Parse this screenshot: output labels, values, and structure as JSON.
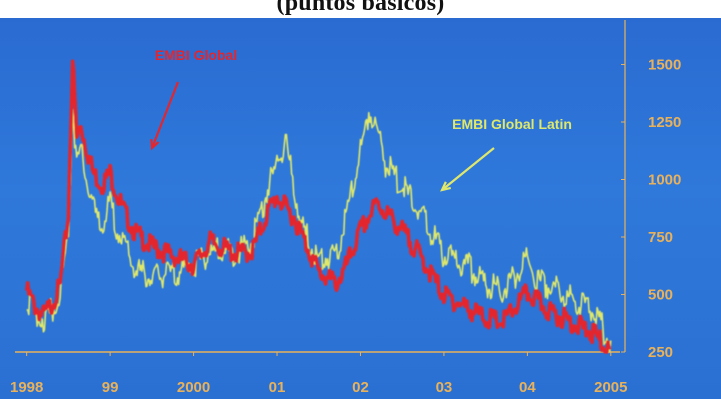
{
  "title_fragment": "(puntos básicos)",
  "colors": {
    "background": "#2f79db",
    "embi_global": "#e3262e",
    "embi_latin": "#dfe86a",
    "axis": "#e9b25a"
  },
  "chart_data": {
    "type": "line",
    "title": "",
    "xlabel": "",
    "ylabel": "",
    "grid": false,
    "x_ticks": [
      "1998",
      "99",
      "2000",
      "01",
      "02",
      "03",
      "04",
      "2005"
    ],
    "x_range": [
      1997.92,
      2005.05
    ],
    "y_ticks": [
      250,
      500,
      750,
      1000,
      1250,
      1500
    ],
    "ylim": [
      250,
      1650
    ],
    "y_axis_side": "right",
    "series": [
      {
        "name": "EMBI Global",
        "color": "#e3262e",
        "x": [
          1998.0,
          1998.1,
          1998.2,
          1998.3,
          1998.4,
          1998.5,
          1998.55,
          1998.6,
          1998.65,
          1998.7,
          1998.8,
          1998.9,
          1999.0,
          1999.1,
          1999.2,
          1999.3,
          1999.5,
          1999.7,
          2000.0,
          2000.2,
          2000.5,
          2000.7,
          2000.9,
          2001.0,
          2001.1,
          2001.2,
          2001.3,
          2001.5,
          2001.7,
          2001.8,
          2002.0,
          2002.2,
          2002.3,
          2002.5,
          2002.7,
          2003.0,
          2003.3,
          2003.5,
          2003.7,
          2004.0,
          2004.3,
          2004.5,
          2004.8,
          2005.0
        ],
        "values": [
          540,
          470,
          430,
          480,
          560,
          870,
          1550,
          1200,
          1260,
          1180,
          1050,
          1000,
          1050,
          940,
          860,
          790,
          730,
          700,
          650,
          750,
          700,
          710,
          890,
          950,
          900,
          860,
          780,
          620,
          570,
          620,
          800,
          920,
          880,
          800,
          700,
          520,
          460,
          420,
          400,
          530,
          440,
          410,
          350,
          270
        ]
      },
      {
        "name": "EMBI Global Latin",
        "color": "#dfe86a",
        "x": [
          1998.0,
          1998.1,
          1998.2,
          1998.3,
          1998.4,
          1998.5,
          1998.55,
          1998.6,
          1998.65,
          1998.7,
          1998.8,
          1998.9,
          1999.0,
          1999.1,
          1999.2,
          1999.3,
          1999.5,
          1999.7,
          2000.0,
          2000.2,
          2000.5,
          2000.7,
          2000.9,
          2001.0,
          2001.1,
          2001.2,
          2001.3,
          2001.5,
          2001.7,
          2001.8,
          2002.0,
          2002.1,
          2002.2,
          2002.3,
          2002.5,
          2002.7,
          2003.0,
          2003.3,
          2003.5,
          2003.7,
          2004.0,
          2004.1,
          2004.3,
          2004.5,
          2004.8,
          2005.0
        ],
        "values": [
          520,
          450,
          420,
          460,
          540,
          800,
          1350,
          1100,
          1150,
          1060,
          900,
          830,
          920,
          800,
          720,
          640,
          600,
          620,
          650,
          720,
          710,
          760,
          1000,
          1100,
          1200,
          1000,
          820,
          680,
          700,
          820,
          1150,
          1330,
          1250,
          1100,
          1000,
          900,
          700,
          650,
          580,
          540,
          680,
          600,
          560,
          520,
          470,
          300
        ]
      }
    ],
    "annotations": [
      {
        "text": "EMBI Global",
        "color": "#e3262e",
        "target_x": 1999.1,
        "target_y": 1080
      },
      {
        "text": "EMBI Global Latin",
        "color": "#dfe86a",
        "target_x": 2002.85,
        "target_y": 960
      }
    ]
  }
}
